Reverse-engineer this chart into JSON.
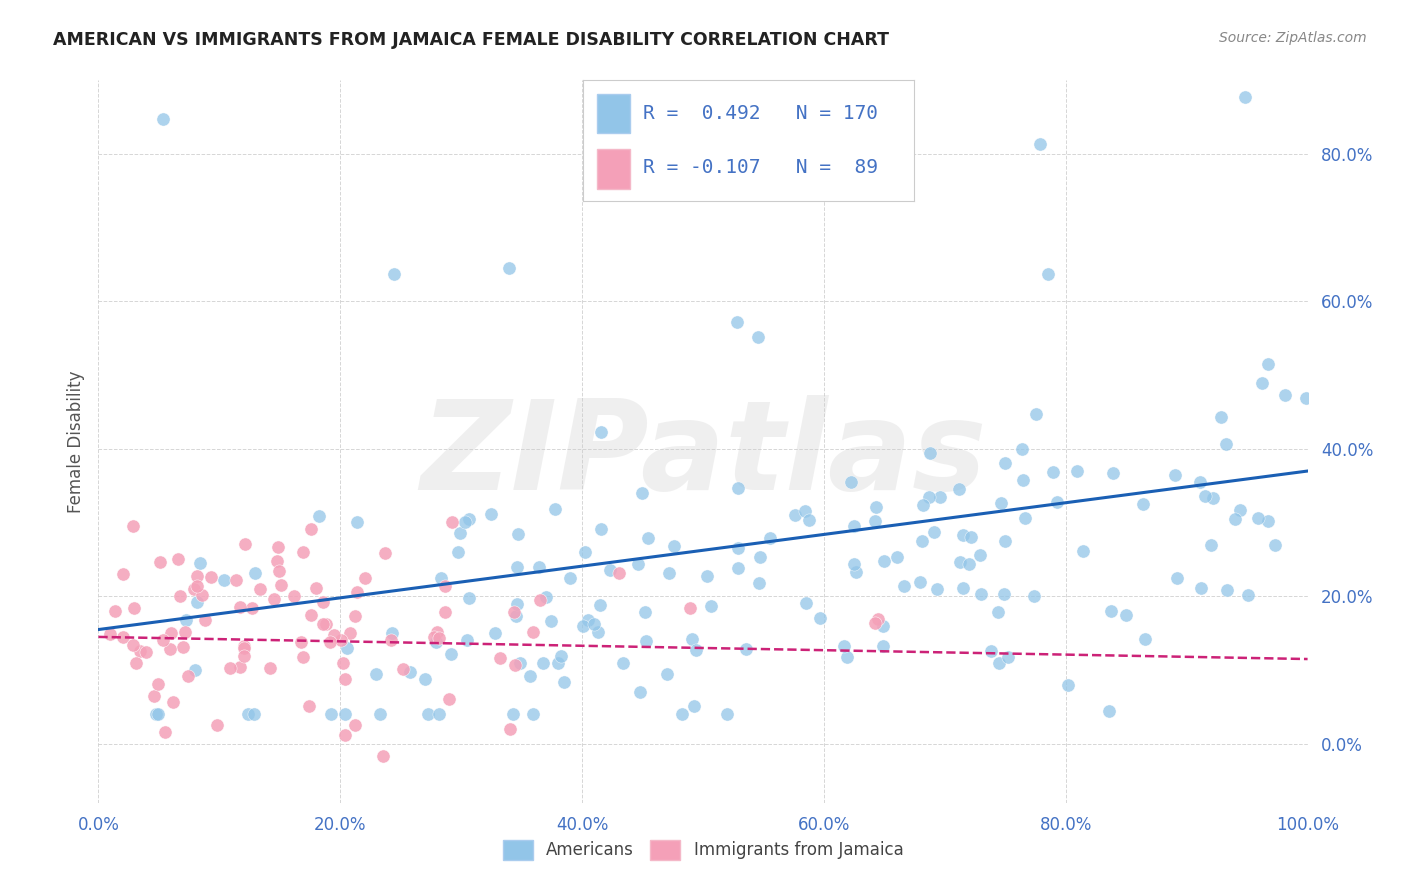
{
  "title": "AMERICAN VS IMMIGRANTS FROM JAMAICA FEMALE DISABILITY CORRELATION CHART",
  "source": "Source: ZipAtlas.com",
  "ylabel": "Female Disability",
  "legend_americans": "Americans",
  "legend_immigrants": "Immigrants from Jamaica",
  "r_americans": 0.492,
  "n_americans": 170,
  "r_immigrants": -0.107,
  "n_immigrants": 89,
  "xlim": [
    0.0,
    1.0
  ],
  "ylim": [
    -0.08,
    0.9
  ],
  "xtick_vals": [
    0.0,
    0.2,
    0.4,
    0.6,
    0.8,
    1.0
  ],
  "xtick_labels": [
    "0.0%",
    "20.0%",
    "40.0%",
    "60.0%",
    "80.0%",
    "100.0%"
  ],
  "ytick_vals": [
    0.0,
    0.2,
    0.4,
    0.6,
    0.8
  ],
  "ytick_labels": [
    "0.0%",
    "20.0%",
    "40.0%",
    "60.0%",
    "80.0%"
  ],
  "color_americans": "#92c5e8",
  "color_immigrants": "#f4a0b8",
  "line_color_americans": "#1a5fb4",
  "line_color_immigrants": "#cc2277",
  "background_color": "#ffffff",
  "watermark": "ZIPatlas",
  "tick_color": "#4472c4",
  "title_color": "#222222",
  "source_color": "#888888",
  "ylabel_color": "#555555"
}
